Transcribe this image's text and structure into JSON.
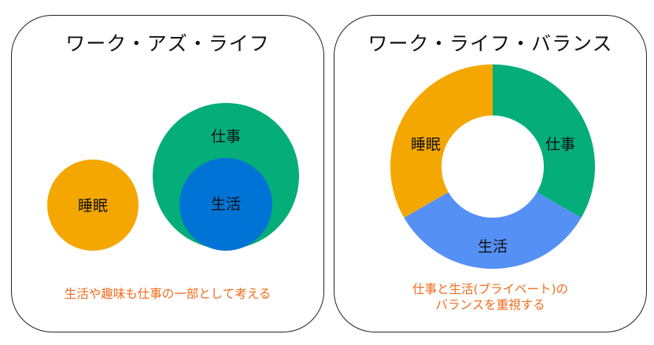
{
  "left": {
    "title": "ワーク・アズ・ライフ",
    "sleep_label": "睡眠",
    "work_label": "仕事",
    "life_label": "生活",
    "caption": "生活や趣味も仕事の一部として考える"
  },
  "right": {
    "title": "ワーク・ライフ・バランス",
    "work_label": "仕事",
    "life_label": "生活",
    "sleep_label": "睡眠",
    "caption_line1": "仕事と生活(プライベート)の",
    "caption_line2": "バランスを重視する"
  },
  "colors": {
    "sleep": "#f4a700",
    "work": "#05ad79",
    "life_inner": "#0073d6",
    "life_ring": "#5590f5",
    "caption": "#f26b1d"
  }
}
